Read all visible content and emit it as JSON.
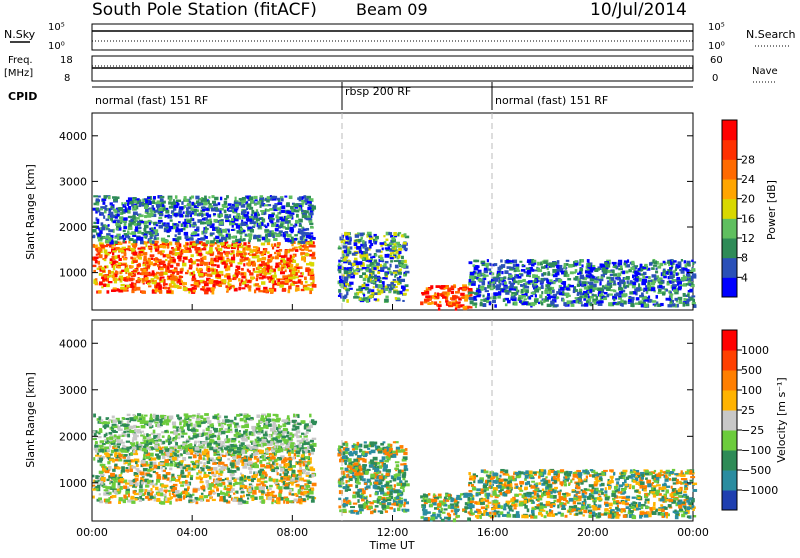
{
  "header": {
    "station": "South Pole Station (fitACF)",
    "beam": "Beam 09",
    "date": "10/Jul/2014"
  },
  "panels": {
    "nsky_label": "N.Sky",
    "nsearch_label": "N.Search",
    "freq_label_1": "Freq.",
    "freq_label_2": "[MHz]",
    "nave_label": "Nave",
    "cpid_label": "CPID",
    "nsky_ticks": [
      "10^5",
      "10^0"
    ],
    "nsearch_ticks": [
      "10^5",
      "10^0"
    ],
    "freq_ticks": [
      "18",
      "8"
    ],
    "nave_ticks": [
      "60",
      "0"
    ],
    "cpid_segments": [
      {
        "label": "normal (fast) 151 RF",
        "start": 0,
        "end": 10
      },
      {
        "label": "rbsp 200 RF",
        "start": 10,
        "end": 16
      },
      {
        "label": "normal (fast) 151 RF",
        "start": 16,
        "end": 24
      }
    ]
  },
  "axes": {
    "ylabel": "Slant Range [km]",
    "xlabel": "Time UT",
    "yticks": [
      "1000",
      "2000",
      "3000",
      "4000"
    ],
    "xticks": [
      "00:00",
      "04:00",
      "08:00",
      "12:00",
      "16:00",
      "20:00",
      "00:00"
    ]
  },
  "colorbars": {
    "power": {
      "label": "Power [dB]",
      "ticks": [
        "4",
        "8",
        "12",
        "16",
        "20",
        "24",
        "28"
      ],
      "colors": [
        "#0000ff",
        "#2a50b8",
        "#2e8b57",
        "#5fbf5f",
        "#d8d800",
        "#ffa500",
        "#ff6a00",
        "#ff3000",
        "#ff0000"
      ]
    },
    "velocity": {
      "label": "Velocity [m s⁻¹]",
      "ticks": [
        "1000",
        "500",
        "100",
        "25",
        "−25",
        "−100",
        "−500",
        "−1000"
      ],
      "colors": [
        "#1f3fb0",
        "#2a8ca0",
        "#2e8b57",
        "#6ccc3c",
        "#c8c8c8",
        "#ffb300",
        "#ff7f00",
        "#ff4000",
        "#ff0000"
      ]
    }
  },
  "chart_data": [
    {
      "type": "heatmap",
      "name": "power",
      "x_unit": "hours UT",
      "y_unit": "km",
      "xlim": [
        0,
        24
      ],
      "ylim": [
        180,
        4500
      ],
      "regions": [
        {
          "t0": 0.0,
          "t1": 8.8,
          "r0": 600,
          "r1": 1700,
          "level": "red-orange"
        },
        {
          "t0": 0.0,
          "t1": 8.8,
          "r0": 1700,
          "r1": 2700,
          "level": "green-blue"
        },
        {
          "t0": 9.8,
          "t1": 12.5,
          "r0": 400,
          "r1": 1900,
          "level": "blue-green"
        },
        {
          "t0": 13.1,
          "t1": 15.1,
          "r0": 230,
          "r1": 750,
          "level": "orange-red"
        },
        {
          "t0": 15.0,
          "t1": 24.0,
          "r0": 300,
          "r1": 1300,
          "level": "blue"
        }
      ]
    },
    {
      "type": "heatmap",
      "name": "velocity",
      "x_unit": "hours UT",
      "y_unit": "km",
      "xlim": [
        0,
        24
      ],
      "ylim": [
        180,
        4500
      ],
      "regions": [
        {
          "t0": 0.0,
          "t1": 8.8,
          "r0": 600,
          "r1": 1800,
          "level": "orange"
        },
        {
          "t0": 0.0,
          "t1": 8.8,
          "r0": 1700,
          "r1": 2500,
          "level": "grey"
        },
        {
          "t0": 9.8,
          "t1": 12.5,
          "r0": 400,
          "r1": 1900,
          "level": "green"
        },
        {
          "t0": 13.1,
          "t1": 15.1,
          "r0": 230,
          "r1": 800,
          "level": "green"
        },
        {
          "t0": 15.0,
          "t1": 24.0,
          "r0": 300,
          "r1": 1300,
          "level": "green-orange"
        }
      ]
    }
  ]
}
